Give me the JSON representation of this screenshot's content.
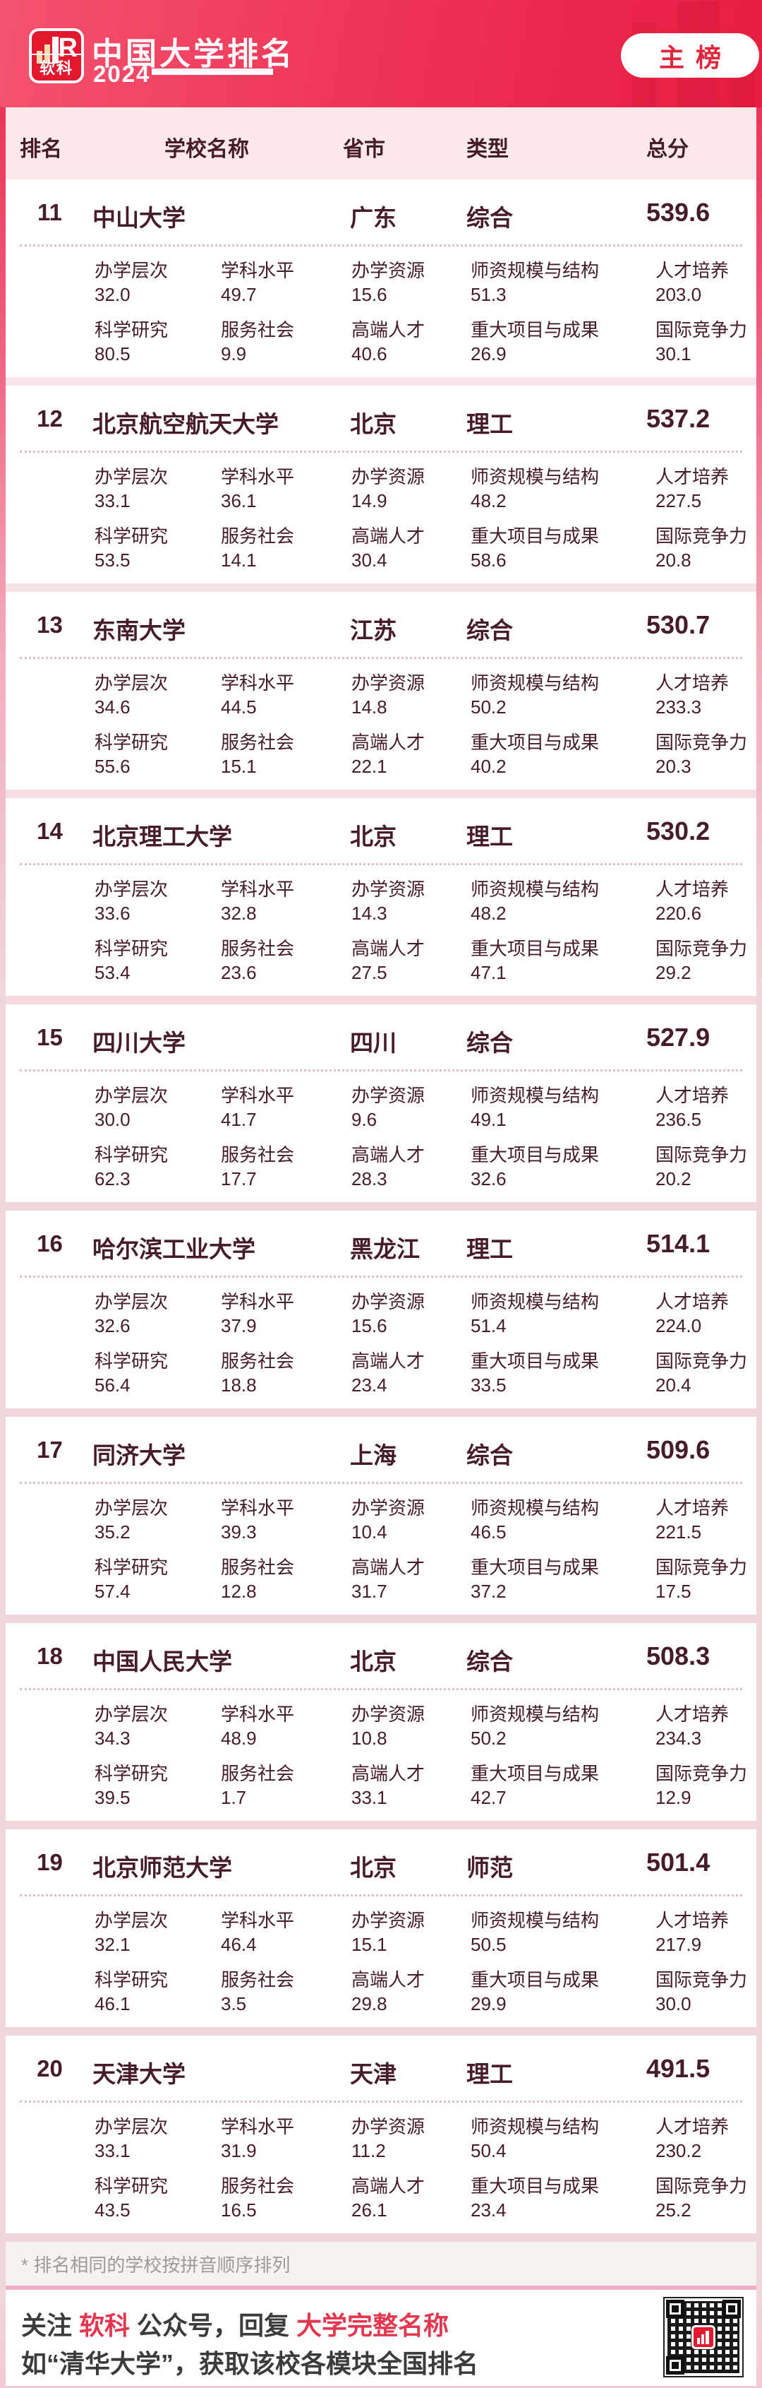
{
  "header": {
    "logo_r": "R",
    "logo_text": "软科",
    "title": "中国大学排名",
    "year": "2024",
    "badge": "主榜"
  },
  "table_header": {
    "rank": "排名",
    "name": "学校名称",
    "province": "省市",
    "type": "类型",
    "score": "总分"
  },
  "metric_labels": [
    "办学层次",
    "学科水平",
    "办学资源",
    "师资规模与结构",
    "人才培养",
    "科学研究",
    "服务社会",
    "高端人才",
    "重大项目与成果",
    "国际竞争力"
  ],
  "entries": [
    {
      "rank": "11",
      "name": "中山大学",
      "province": "广东",
      "type": "综合",
      "score": "539.6",
      "metrics": [
        "32.0",
        "49.7",
        "15.6",
        "51.3",
        "203.0",
        "80.5",
        "9.9",
        "40.6",
        "26.9",
        "30.1"
      ]
    },
    {
      "rank": "12",
      "name": "北京航空航天大学",
      "province": "北京",
      "type": "理工",
      "score": "537.2",
      "metrics": [
        "33.1",
        "36.1",
        "14.9",
        "48.2",
        "227.5",
        "53.5",
        "14.1",
        "30.4",
        "58.6",
        "20.8"
      ]
    },
    {
      "rank": "13",
      "name": "东南大学",
      "province": "江苏",
      "type": "综合",
      "score": "530.7",
      "metrics": [
        "34.6",
        "44.5",
        "14.8",
        "50.2",
        "233.3",
        "55.6",
        "15.1",
        "22.1",
        "40.2",
        "20.3"
      ]
    },
    {
      "rank": "14",
      "name": "北京理工大学",
      "province": "北京",
      "type": "理工",
      "score": "530.2",
      "metrics": [
        "33.6",
        "32.8",
        "14.3",
        "48.2",
        "220.6",
        "53.4",
        "23.6",
        "27.5",
        "47.1",
        "29.2"
      ]
    },
    {
      "rank": "15",
      "name": "四川大学",
      "province": "四川",
      "type": "综合",
      "score": "527.9",
      "metrics": [
        "30.0",
        "41.7",
        "9.6",
        "49.1",
        "236.5",
        "62.3",
        "17.7",
        "28.3",
        "32.6",
        "20.2"
      ]
    },
    {
      "rank": "16",
      "name": "哈尔滨工业大学",
      "province": "黑龙江",
      "type": "理工",
      "score": "514.1",
      "metrics": [
        "32.6",
        "37.9",
        "15.6",
        "51.4",
        "224.0",
        "56.4",
        "18.8",
        "23.4",
        "33.5",
        "20.4"
      ]
    },
    {
      "rank": "17",
      "name": "同济大学",
      "province": "上海",
      "type": "综合",
      "score": "509.6",
      "metrics": [
        "35.2",
        "39.3",
        "10.4",
        "46.5",
        "221.5",
        "57.4",
        "12.8",
        "31.7",
        "37.2",
        "17.5"
      ]
    },
    {
      "rank": "18",
      "name": "中国人民大学",
      "province": "北京",
      "type": "综合",
      "score": "508.3",
      "metrics": [
        "34.3",
        "48.9",
        "10.8",
        "50.2",
        "234.3",
        "39.5",
        "1.7",
        "33.1",
        "42.7",
        "12.9"
      ]
    },
    {
      "rank": "19",
      "name": "北京师范大学",
      "province": "北京",
      "type": "师范",
      "score": "501.4",
      "metrics": [
        "32.1",
        "46.4",
        "15.1",
        "50.5",
        "217.9",
        "46.1",
        "3.5",
        "29.8",
        "29.9",
        "30.0"
      ]
    },
    {
      "rank": "20",
      "name": "天津大学",
      "province": "天津",
      "type": "理工",
      "score": "491.5",
      "metrics": [
        "33.1",
        "31.9",
        "11.2",
        "50.4",
        "230.2",
        "43.5",
        "16.5",
        "26.1",
        "23.4",
        "25.2"
      ]
    }
  ],
  "footnote": "* 排名相同的学校按拼音顺序排列",
  "footer": {
    "segments": [
      {
        "text": "关注 ",
        "red": false
      },
      {
        "text": "软科",
        "red": true
      },
      {
        "text": " 公众号，回复 ",
        "red": false
      },
      {
        "text": "大学完整名称",
        "red": true
      }
    ],
    "line2": "如“清华大学”，获取该校各模块全国排名"
  },
  "colors": {
    "header_red": "#e71d41",
    "text_maroon": "#451c28",
    "footer_red": "#e2374e",
    "band_pink": "#fbe8e9"
  }
}
